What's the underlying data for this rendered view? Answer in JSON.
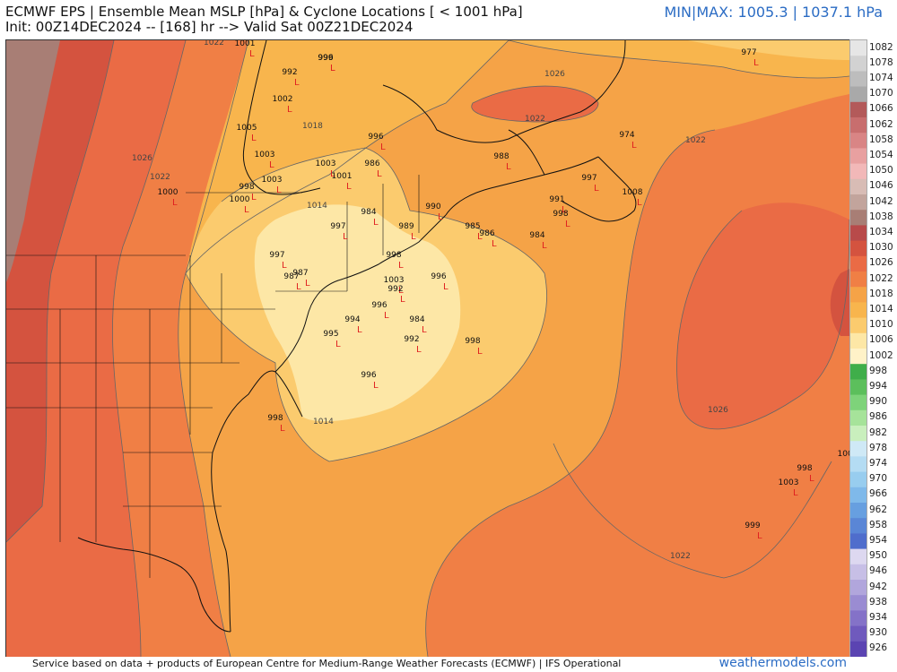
{
  "header": {
    "title": "ECMWF EPS | Ensemble Mean MSLP [hPa] & Cyclone Locations [ < 1001 hPa]",
    "init_line": "Init: 00Z14DEC2024 -- [168] hr --> Valid Sat 00Z21DEC2024",
    "minmax": "MIN|MAX: 1005.3 | 1037.1 hPa"
  },
  "footer": {
    "credit": "Service based on data + products of European Centre for Medium-Range Weather Forecasts (ECMWF) | IFS Operational",
    "brand": "weathermodels.com"
  },
  "colorbar": {
    "levels": [
      "1082",
      "1078",
      "1074",
      "1070",
      "1066",
      "1062",
      "1058",
      "1054",
      "1050",
      "1046",
      "1042",
      "1038",
      "1034",
      "1030",
      "1026",
      "1022",
      "1018",
      "1014",
      "1010",
      "1006",
      "1002",
      "998",
      "994",
      "990",
      "986",
      "982",
      "978",
      "974",
      "970",
      "966",
      "962",
      "958",
      "954",
      "950",
      "946",
      "942",
      "938",
      "934",
      "930",
      "926"
    ],
    "colors": [
      "#e6e6e6",
      "#d2d2d2",
      "#bdbdbd",
      "#a9a9a9",
      "#b35a5a",
      "#c86e6e",
      "#d98585",
      "#e8a0a0",
      "#f2b8b8",
      "#d8bcb5",
      "#c2a49c",
      "#a87e75",
      "#b84a4a",
      "#d4533f",
      "#ea6b45",
      "#f07f45",
      "#f5a347",
      "#f8b54d",
      "#fbcb6e",
      "#fde7a6",
      "#fff2c8",
      "#3fae4a",
      "#5cbf5c",
      "#7ed37a",
      "#a6e39a",
      "#c9efbd",
      "#cfe9f6",
      "#b4dcf3",
      "#98cdef",
      "#7fb9ea",
      "#679fe0",
      "#5a86d6",
      "#4f6dcc",
      "#ddd8f0",
      "#c7bfe6",
      "#b1a6dc",
      "#9a8cd2",
      "#8472c8",
      "#6f5abd",
      "#5b44b2"
    ]
  },
  "isobars": [
    "1014",
    "1014",
    "1018",
    "1022",
    "1022",
    "1022",
    "1022",
    "1026",
    "1026",
    "1026",
    "1022"
  ],
  "cyclones": [
    {
      "v": "977"
    },
    {
      "v": "999"
    },
    {
      "v": "996"
    },
    {
      "v": "992"
    },
    {
      "v": "1001"
    },
    {
      "v": "1002"
    },
    {
      "v": "1005"
    },
    {
      "v": "1003"
    },
    {
      "v": "1003"
    },
    {
      "v": "1003"
    },
    {
      "v": "1001"
    },
    {
      "v": "996"
    },
    {
      "v": "986"
    },
    {
      "v": "998"
    },
    {
      "v": "1000"
    },
    {
      "v": "1000"
    },
    {
      "v": "988"
    },
    {
      "v": "974"
    },
    {
      "v": "997"
    },
    {
      "v": "1008"
    },
    {
      "v": "991"
    },
    {
      "v": "998"
    },
    {
      "v": "984"
    },
    {
      "v": "990"
    },
    {
      "v": "985"
    },
    {
      "v": "986"
    },
    {
      "v": "984"
    },
    {
      "v": "997"
    },
    {
      "v": "989"
    },
    {
      "v": "998"
    },
    {
      "v": "997"
    },
    {
      "v": "987"
    },
    {
      "v": "987"
    },
    {
      "v": "996"
    },
    {
      "v": "1003"
    },
    {
      "v": "992"
    },
    {
      "v": "996"
    },
    {
      "v": "994"
    },
    {
      "v": "984"
    },
    {
      "v": "995"
    },
    {
      "v": "992"
    },
    {
      "v": "998"
    },
    {
      "v": "996"
    },
    {
      "v": "998"
    },
    {
      "v": "1005"
    },
    {
      "v": "998"
    },
    {
      "v": "1003"
    },
    {
      "v": "999"
    }
  ]
}
